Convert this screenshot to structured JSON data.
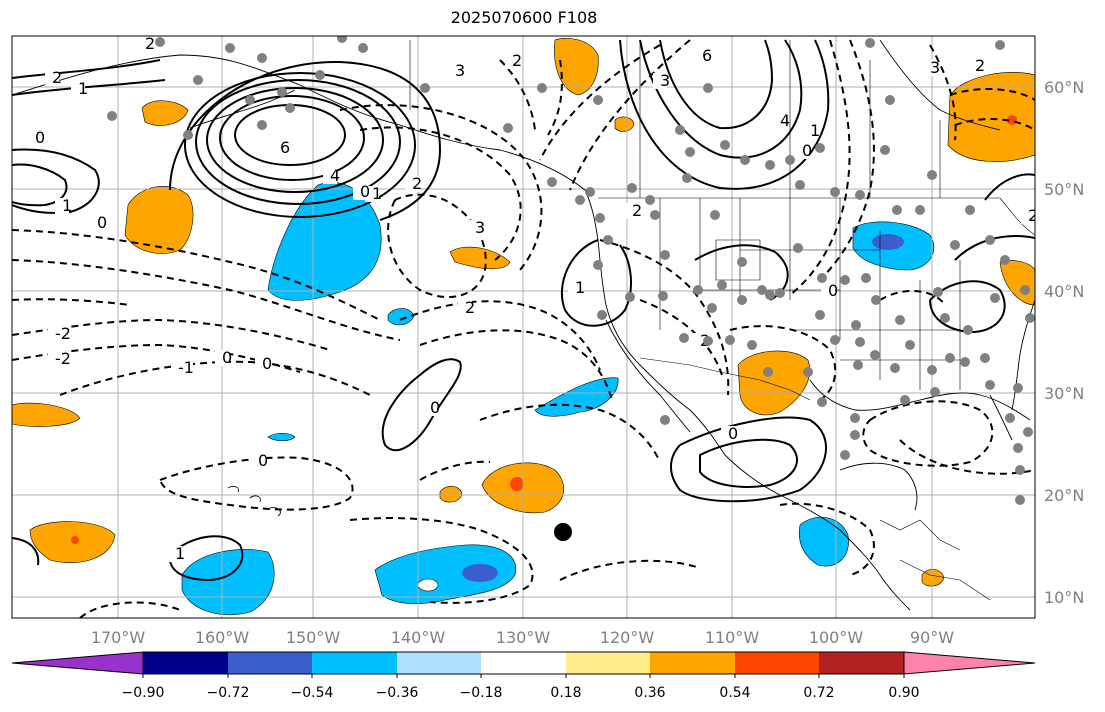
{
  "title": "2025070600 F108",
  "map": {
    "lat_labels": [
      "60°N",
      "50°N",
      "40°N",
      "30°N",
      "20°N",
      "10°N"
    ],
    "lon_labels": [
      "170°W",
      "160°W",
      "150°W",
      "140°W",
      "130°W",
      "120°W",
      "110°W",
      "100°W",
      "90°W"
    ],
    "contour_labels": [
      "2",
      "1",
      "0",
      "2",
      "1",
      "0",
      "6",
      "4",
      "3",
      "2",
      "1",
      "0",
      "-2",
      "-2",
      "-1",
      "0",
      "0",
      "2",
      "3",
      "2",
      "0",
      "0",
      "2",
      "1",
      "6",
      "4",
      "3",
      "2",
      "1",
      "0",
      "2",
      "3",
      "2",
      "0",
      "0",
      "1"
    ],
    "colors": {
      "purple": "#9932cc",
      "navy": "#00008b",
      "royal_blue": "#3a5fcd",
      "deep_sky": "#00bfff",
      "light_sky": "#b0e2ff",
      "white": "#ffffff",
      "khaki": "#ffec8b",
      "orange": "#ffa500",
      "orange_red": "#ff4500",
      "firebrick": "#b22222",
      "pink": "#ff82ab",
      "station_dot": "#808080"
    }
  },
  "colorbar": {
    "ticks": [
      "−0.90",
      "−0.72",
      "−0.54",
      "−0.36",
      "−0.18",
      "0.18",
      "0.36",
      "0.54",
      "0.72",
      "0.90"
    ]
  }
}
